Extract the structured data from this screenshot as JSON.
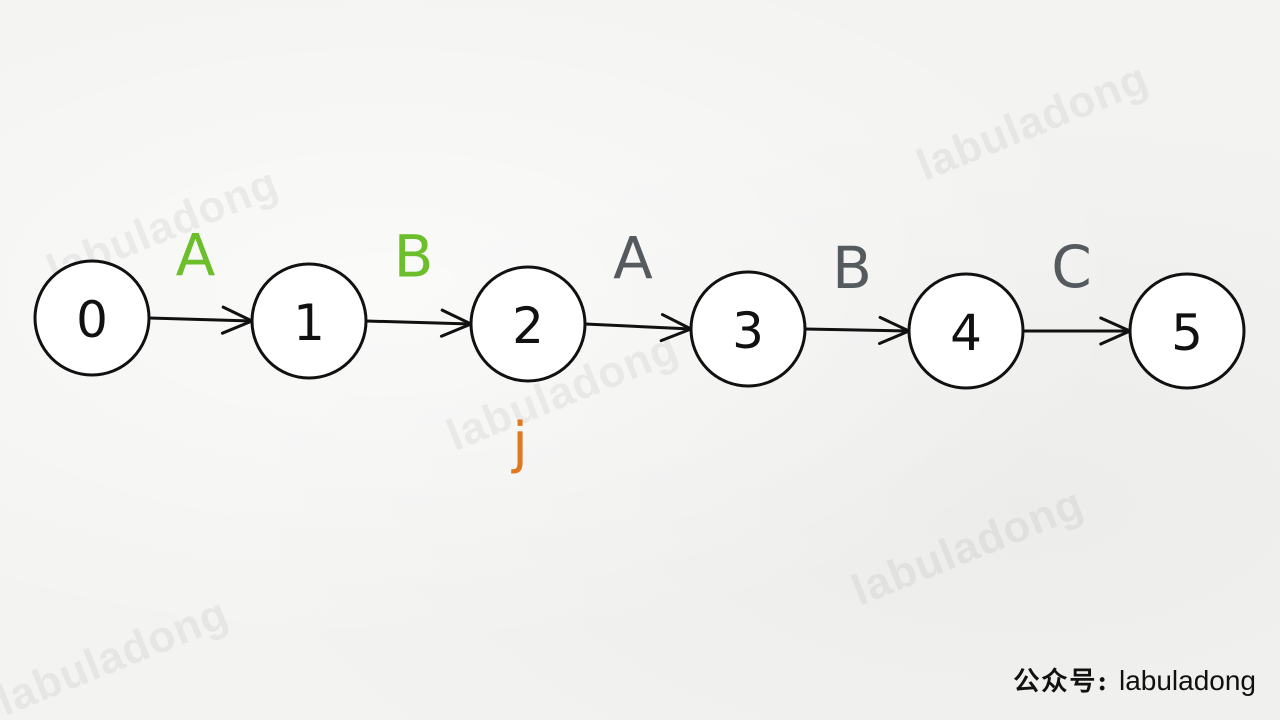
{
  "diagram": {
    "nodes": [
      {
        "id": "0",
        "label": "0"
      },
      {
        "id": "1",
        "label": "1"
      },
      {
        "id": "2",
        "label": "2"
      },
      {
        "id": "3",
        "label": "3"
      },
      {
        "id": "4",
        "label": "4"
      },
      {
        "id": "5",
        "label": "5"
      }
    ],
    "edges": [
      {
        "from": "0",
        "to": "1",
        "label": "A",
        "color": "#6cbf2a"
      },
      {
        "from": "1",
        "to": "2",
        "label": "B",
        "color": "#6cbf2a"
      },
      {
        "from": "2",
        "to": "3",
        "label": "A",
        "color": "#555a5f"
      },
      {
        "from": "3",
        "to": "4",
        "label": "B",
        "color": "#555a5f"
      },
      {
        "from": "4",
        "to": "5",
        "label": "C",
        "color": "#555a5f"
      }
    ],
    "pointer": {
      "label": "j",
      "node": "2",
      "color": "#e07820"
    }
  },
  "watermark": {
    "text": "labuladong"
  },
  "footer": {
    "prefix": "公众号:",
    "name": "labuladong"
  }
}
